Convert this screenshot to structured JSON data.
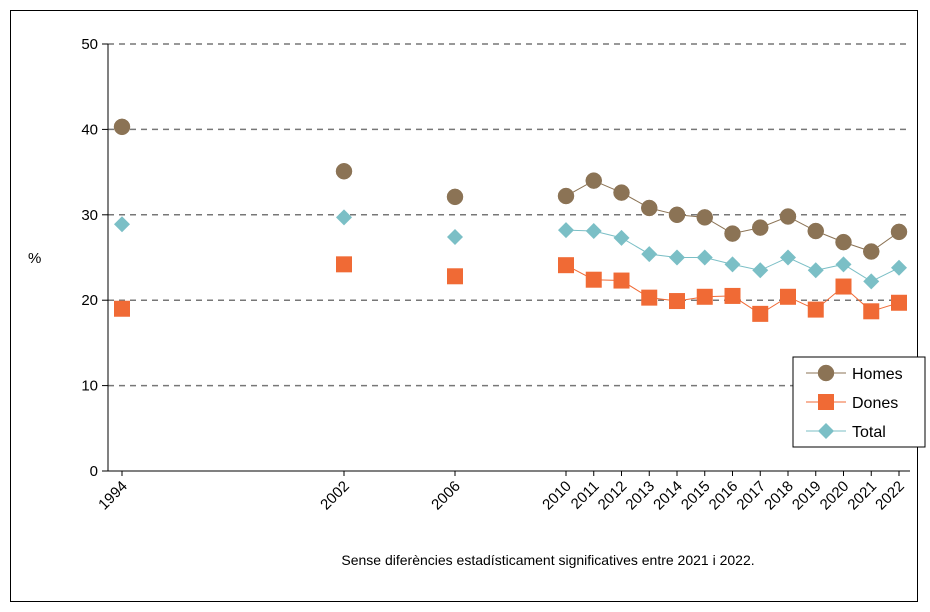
{
  "chart_data": {
    "type": "line",
    "title": "",
    "xlabel": "",
    "ylabel": "%",
    "ylim": [
      0,
      50
    ],
    "yticks": [
      0,
      10,
      20,
      30,
      40,
      50
    ],
    "grid": "horizontal-dashed",
    "legend_position": "right-bottom",
    "x": [
      1994,
      2002,
      2006,
      2010,
      2011,
      2012,
      2013,
      2014,
      2015,
      2016,
      2017,
      2018,
      2019,
      2020,
      2021,
      2022
    ],
    "xtick_labels": [
      "1994",
      "2002",
      "2006",
      "2010",
      "2011",
      "2012",
      "2013",
      "2014",
      "2015",
      "2016",
      "2017",
      "2018",
      "2019",
      "2020",
      "2021",
      "2022"
    ],
    "series": [
      {
        "name": "Homes",
        "marker": "circle",
        "color": "#8b7355",
        "line_color": "#8b7355",
        "connected_from_index": 3,
        "values": [
          40.3,
          35.1,
          32.1,
          32.2,
          34.0,
          32.6,
          30.8,
          30.0,
          29.7,
          27.8,
          28.5,
          29.8,
          28.1,
          26.8,
          25.7,
          28.0
        ]
      },
      {
        "name": "Dones",
        "marker": "square",
        "color": "#f06a35",
        "line_color": "#f06a35",
        "connected_from_index": 3,
        "values": [
          19.0,
          24.2,
          22.8,
          24.1,
          22.4,
          22.3,
          20.3,
          19.9,
          20.4,
          20.5,
          18.4,
          20.4,
          18.9,
          21.6,
          18.7,
          19.7
        ]
      },
      {
        "name": "Total",
        "marker": "diamond",
        "color": "#7bbfc6",
        "line_color": "#7bbfc6",
        "connected_from_index": 3,
        "values": [
          28.9,
          29.7,
          27.4,
          28.2,
          28.1,
          27.3,
          25.4,
          25.0,
          25.0,
          24.2,
          23.5,
          25.0,
          23.5,
          24.2,
          22.2,
          23.8
        ]
      }
    ],
    "note": "Sense diferències estadísticament  significatives entre 2021 i 2022."
  }
}
